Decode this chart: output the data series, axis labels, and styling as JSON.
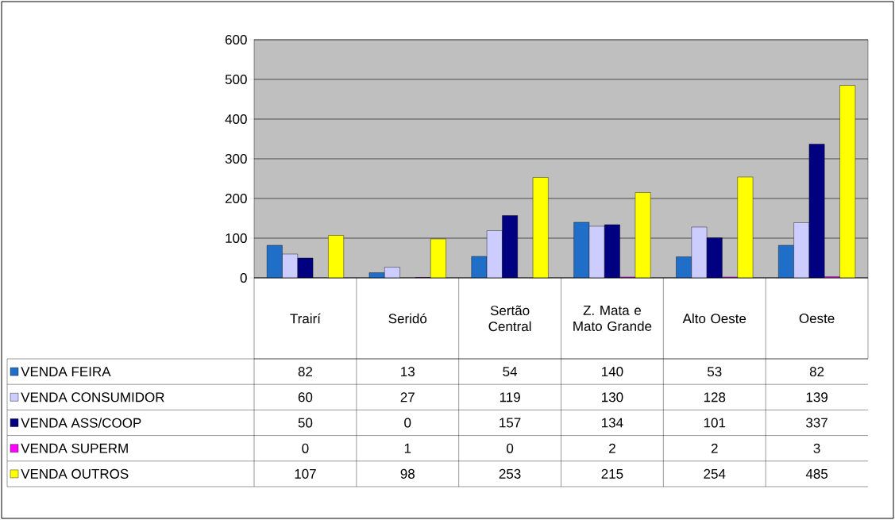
{
  "chart_data": {
    "type": "bar",
    "categories": [
      "Trairí",
      "Seridó",
      "Sertão Central",
      "Z. Mata e Mato Grande",
      "Alto Oeste",
      "Oeste"
    ],
    "series": [
      {
        "name": "VENDA FEIRA",
        "color": "#1f6fc8",
        "values": [
          82,
          13,
          54,
          140,
          53,
          82
        ]
      },
      {
        "name": "VENDA CONSUMIDOR",
        "color": "#ccccff",
        "values": [
          60,
          27,
          119,
          130,
          128,
          139
        ]
      },
      {
        "name": "VENDA ASS/COOP",
        "color": "#000080",
        "values": [
          50,
          0,
          157,
          134,
          101,
          337
        ]
      },
      {
        "name": "VENDA SUPERM",
        "color": "#ff00ff",
        "values": [
          0,
          1,
          0,
          2,
          2,
          3
        ]
      },
      {
        "name": "VENDA OUTROS",
        "color": "#ffff00",
        "values": [
          107,
          98,
          253,
          215,
          254,
          485
        ]
      }
    ],
    "ylim": [
      0,
      600
    ],
    "yticks": [
      0,
      100,
      200,
      300,
      400,
      500,
      600
    ],
    "grid": "y",
    "legend": "bottom",
    "data_labels": true
  }
}
